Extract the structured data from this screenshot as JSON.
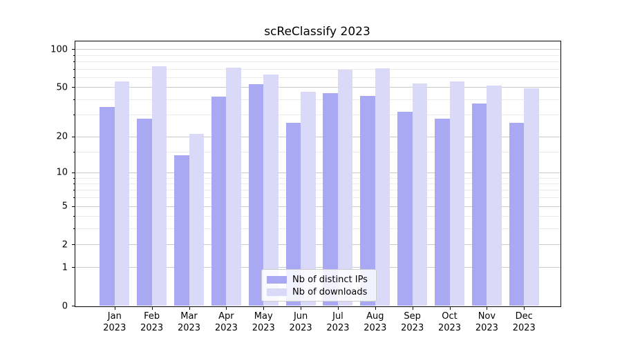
{
  "title": "scReClassify 2023",
  "chart_data": {
    "type": "bar",
    "title": "scReClassify 2023",
    "xlabel": "",
    "ylabel": "",
    "x_tick_line1": [
      "Jan",
      "Feb",
      "Mar",
      "Apr",
      "May",
      "Jun",
      "Jul",
      "Aug",
      "Sep",
      "Oct",
      "Nov",
      "Dec"
    ],
    "x_tick_line2": [
      "2023",
      "2023",
      "2023",
      "2023",
      "2023",
      "2023",
      "2023",
      "2023",
      "2023",
      "2023",
      "2023",
      "2023"
    ],
    "categories": [
      "Jan 2023",
      "Feb 2023",
      "Mar 2023",
      "Apr 2023",
      "May 2023",
      "Jun 2023",
      "Jul 2023",
      "Aug 2023",
      "Sep 2023",
      "Oct 2023",
      "Nov 2023",
      "Dec 2023"
    ],
    "series": [
      {
        "name": "Nb of distinct IPs",
        "color": "#a8a8f3",
        "values": [
          35,
          28,
          14,
          42,
          53,
          26,
          45,
          43,
          32,
          28,
          37,
          26
        ]
      },
      {
        "name": "Nb of downloads",
        "color": "#dadaf8",
        "values": [
          56,
          74,
          21,
          72,
          63,
          46,
          69,
          71,
          54,
          56,
          52,
          49
        ]
      }
    ],
    "y_scale": "log10(1+v)",
    "y_major_ticks": [
      "0",
      "1",
      "2",
      "5",
      "10",
      "20",
      "50",
      "100"
    ],
    "y_minor_ticks": [
      3,
      4,
      6,
      7,
      8,
      9,
      15,
      30,
      40,
      60,
      70,
      80,
      90
    ],
    "ylim_top_approx": 120,
    "grid": "major and minor horizontal",
    "legend_position": "bottom-center",
    "colors": {
      "major_grid": "#c9c9c9",
      "minor_grid": "#ebebeb",
      "axis": "#000000"
    }
  },
  "legend": {
    "item1": "Nb of distinct IPs",
    "item2": "Nb of downloads"
  }
}
